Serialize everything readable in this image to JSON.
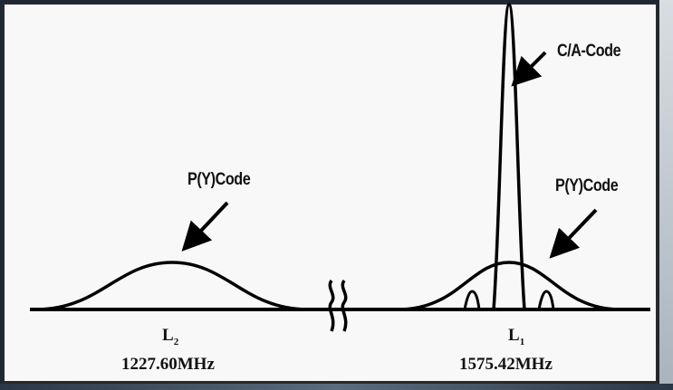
{
  "labels": {
    "pycode_l2": "P(Y)Code",
    "pycode_l1": "P(Y)Code",
    "ca_code": "C/A-Code"
  },
  "bands": [
    {
      "name": "L",
      "sub": "2",
      "freq": "1227.60MHz"
    },
    {
      "name": "L",
      "sub": "1",
      "freq": "1575.42MHz"
    }
  ],
  "colors": {
    "line": "#000000",
    "panel_background": "#f8f8f8",
    "outer_frame": "#1e2733"
  },
  "icons": [
    "arrow-icon",
    "axis-break-icon"
  ]
}
